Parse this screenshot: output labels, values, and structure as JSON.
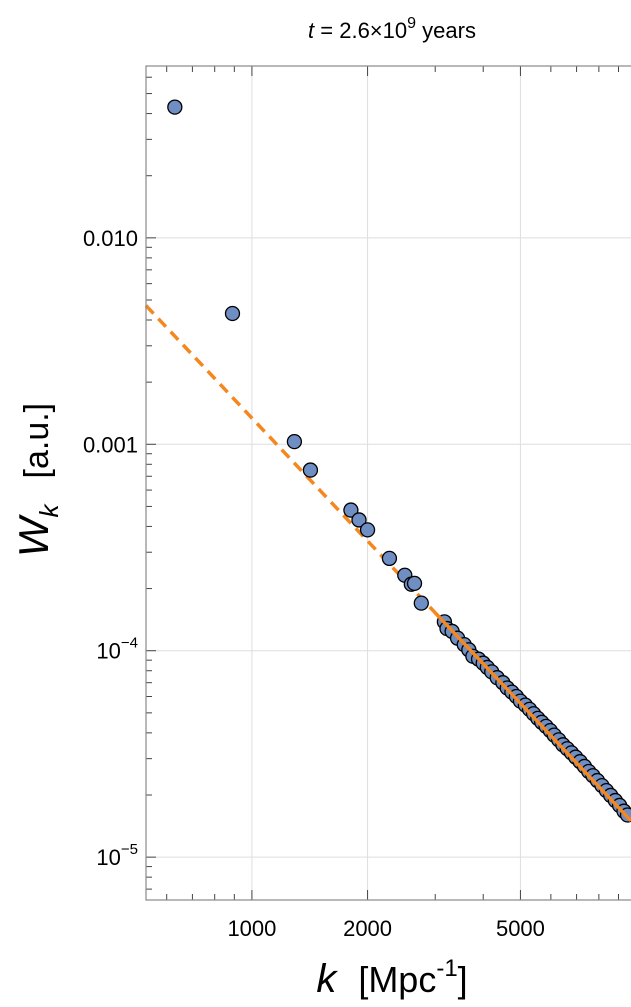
{
  "chart_data": {
    "type": "scatter",
    "title": {
      "prefix": "t",
      "middle": " = 2.6×10",
      "exponent": "9",
      "suffix": " years"
    },
    "xlabel": {
      "symbol": "k",
      "unit": "[Mpc",
      "unit_exp": "-1",
      "unit_close": "]"
    },
    "ylabel": {
      "symbol": "W",
      "subscript": "k",
      "unit": "[a.u.]"
    },
    "xscale": "log",
    "yscale": "log",
    "xlim": [
      530,
      9700
    ],
    "ylim": [
      6.2e-06,
      0.068
    ],
    "grid": true,
    "x_ticks": [
      {
        "value": 1000,
        "label": "1000"
      },
      {
        "value": 2000,
        "label": "2000"
      },
      {
        "value": 5000,
        "label": "5000"
      }
    ],
    "y_ticks": [
      {
        "value": 0.01,
        "label": "0.010"
      },
      {
        "value": 0.001,
        "label": "0.001"
      },
      {
        "value": 0.0001,
        "label_base": "10",
        "label_exp": "−4"
      },
      {
        "value": 1e-05,
        "label_base": "10",
        "label_exp": "−5"
      }
    ],
    "colors": {
      "points": "#6f8fc4",
      "point_edge": "#000000",
      "fit": "#f5871f",
      "grid": "#dedede",
      "frame": "#888888"
    },
    "series": [
      {
        "kind": "points",
        "x": [
          630,
          890,
          1290,
          1420,
          1810,
          1900,
          2000,
          2280,
          2500,
          2600,
          2650,
          2760,
          3170,
          3220,
          3320,
          3430,
          3570,
          3670,
          3760,
          3890,
          4000,
          4100,
          4210,
          4350,
          4500,
          4620,
          4750,
          4880,
          5000,
          5150,
          5280,
          5410,
          5550,
          5680,
          5830,
          5980,
          6120,
          6290,
          6450,
          6620,
          6790,
          6960,
          7150,
          7340,
          7530,
          7720,
          7930,
          8150,
          8370,
          8590,
          8830,
          9060,
          9300,
          9500
        ],
        "y": [
          0.043,
          0.0043,
          0.00103,
          0.00075,
          0.00048,
          0.00043,
          0.000385,
          0.00028,
          0.000232,
          0.00021,
          0.000212,
          0.00017,
          0.000138,
          0.000128,
          0.000124,
          0.000115,
          0.000107,
          0.000101,
          9.4e-05,
          9.1e-05,
          8.7e-05,
          8.3e-05,
          7.9e-05,
          7.4e-05,
          7e-05,
          6.6e-05,
          6.3e-05,
          6e-05,
          5.7e-05,
          5.45e-05,
          5.2e-05,
          4.95e-05,
          4.7e-05,
          4.5e-05,
          4.3e-05,
          4.1e-05,
          3.9e-05,
          3.7e-05,
          3.5e-05,
          3.35e-05,
          3.2e-05,
          3.05e-05,
          2.9e-05,
          2.75e-05,
          2.6e-05,
          2.48e-05,
          2.35e-05,
          2.22e-05,
          2.1e-05,
          1.99e-05,
          1.88e-05,
          1.78e-05,
          1.67e-05,
          1.6e-05
        ]
      },
      {
        "kind": "fit-line",
        "style": "dashed-then-solid",
        "x": [
          530,
          9700
        ],
        "y": [
          0.0047,
          1.5e-05
        ],
        "solid_from_x": 3000
      }
    ]
  }
}
